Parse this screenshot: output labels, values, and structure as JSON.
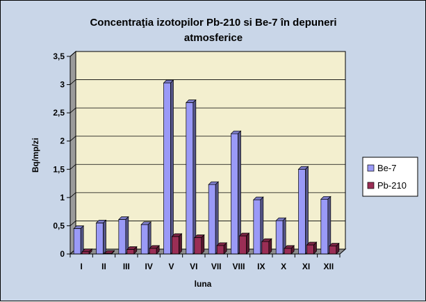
{
  "colors": {
    "background": "#c9d6e8",
    "plot_area": "#f3efcf",
    "be7": "#9a9af7",
    "pb210": "#9a2e55"
  },
  "chart_data": {
    "type": "bar",
    "title_line1": "Concentraţia izotopilor Pb-210 si Be-7 în depuneri",
    "title_line2": "atmosferice",
    "xlabel": "luna",
    "ylabel": "Bq/mp/zi",
    "ylim": [
      0,
      3.5
    ],
    "yticks": [
      "0",
      "0,5",
      "1",
      "1,5",
      "2",
      "2,5",
      "3",
      "3,5"
    ],
    "grid": true,
    "legend_position": "right",
    "categories": [
      "I",
      "II",
      "III",
      "IV",
      "V",
      "VI",
      "VII",
      "VIII",
      "IX",
      "X",
      "XI",
      "XII"
    ],
    "series": [
      {
        "name": "Be-7",
        "values": [
          0.45,
          0.55,
          0.61,
          0.52,
          3.03,
          2.68,
          1.23,
          2.13,
          0.96,
          0.59,
          1.5,
          0.97
        ]
      },
      {
        "name": "Pb-210",
        "values": [
          0.04,
          0.01,
          0.08,
          0.1,
          0.31,
          0.29,
          0.15,
          0.32,
          0.22,
          0.1,
          0.16,
          0.14
        ]
      }
    ]
  }
}
